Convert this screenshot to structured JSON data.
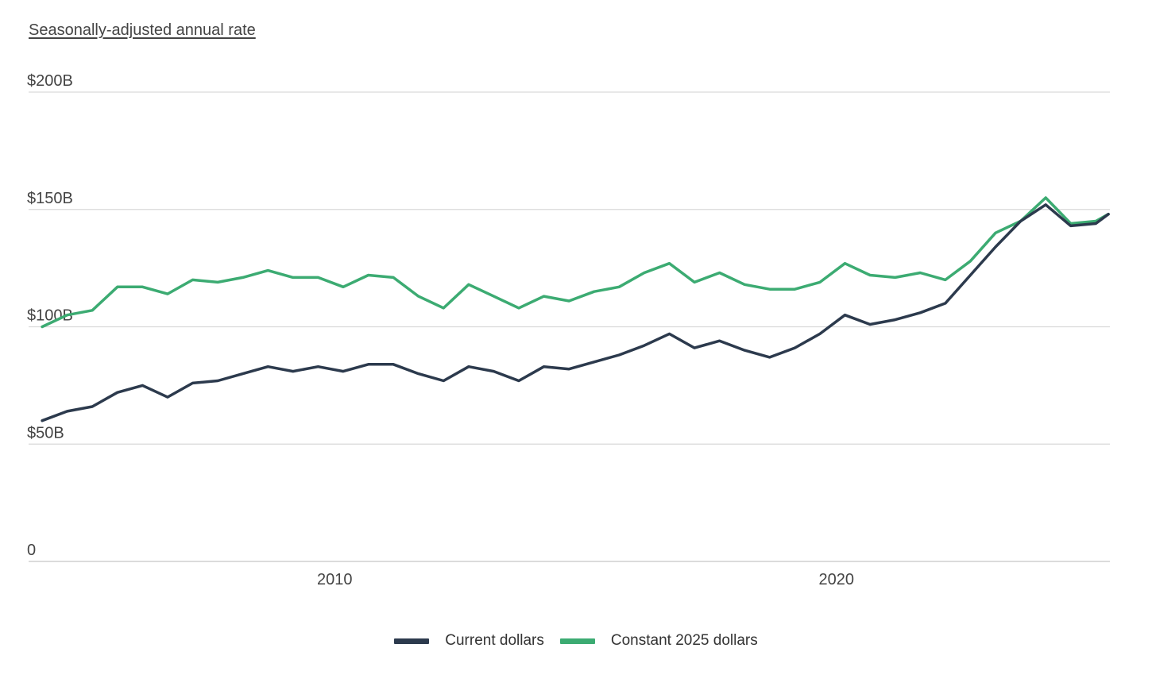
{
  "subtitle": "Seasonally-adjusted annual rate",
  "colors": {
    "current": "#2c3a4d",
    "constant": "#3cab72",
    "grid": "#d9d9d9",
    "axis": "#cfcfcf"
  },
  "chart_data": {
    "type": "line",
    "subtitle": "Seasonally-adjusted annual rate",
    "xlabel": "",
    "ylabel": "",
    "ylim": [
      0,
      200
    ],
    "y_ticks": [
      0,
      50,
      100,
      150,
      200
    ],
    "y_tick_labels": [
      "0",
      "$50B",
      "$100B",
      "$150B",
      "$200B"
    ],
    "x_ticks": [
      2010,
      2020
    ],
    "x_tick_labels": [
      "2010",
      "2020"
    ],
    "xlim": [
      2003.9,
      2025.45
    ],
    "grid": true,
    "legend_position": "bottom-center",
    "x": [
      2004.17,
      2004.67,
      2005.17,
      2005.67,
      2006.17,
      2006.67,
      2007.17,
      2007.67,
      2008.17,
      2008.67,
      2009.17,
      2009.67,
      2010.17,
      2010.67,
      2011.17,
      2011.67,
      2012.17,
      2012.67,
      2013.17,
      2013.67,
      2014.17,
      2014.67,
      2015.17,
      2015.67,
      2016.17,
      2016.67,
      2017.17,
      2017.67,
      2018.17,
      2018.67,
      2019.17,
      2019.67,
      2020.17,
      2020.67,
      2021.17,
      2021.67,
      2022.17,
      2022.67,
      2023.17,
      2023.67,
      2024.17,
      2024.67,
      2025.17,
      2025.42
    ],
    "series": [
      {
        "name": "Current dollars",
        "color": "#2c3a4d",
        "values": [
          60,
          64,
          66,
          72,
          75,
          70,
          76,
          77,
          80,
          83,
          81,
          83,
          81,
          84,
          84,
          80,
          77,
          83,
          81,
          77,
          83,
          82,
          85,
          88,
          92,
          97,
          91,
          94,
          90,
          87,
          91,
          97,
          105,
          101,
          103,
          106,
          110,
          122,
          134,
          145,
          152,
          143,
          144,
          148
        ]
      },
      {
        "name": "Constant 2025 dollars",
        "color": "#3cab72",
        "values": [
          100,
          105,
          107,
          117,
          117,
          114,
          120,
          119,
          121,
          124,
          121,
          121,
          117,
          122,
          121,
          113,
          108,
          118,
          113,
          108,
          113,
          111,
          115,
          117,
          123,
          127,
          119,
          123,
          118,
          116,
          116,
          119,
          127,
          122,
          121,
          123,
          120,
          128,
          140,
          145,
          155,
          144,
          145,
          148
        ]
      }
    ]
  },
  "legend": [
    {
      "label": "Current dollars",
      "color": "#2c3a4d"
    },
    {
      "label": "Constant 2025 dollars",
      "color": "#3cab72"
    }
  ]
}
